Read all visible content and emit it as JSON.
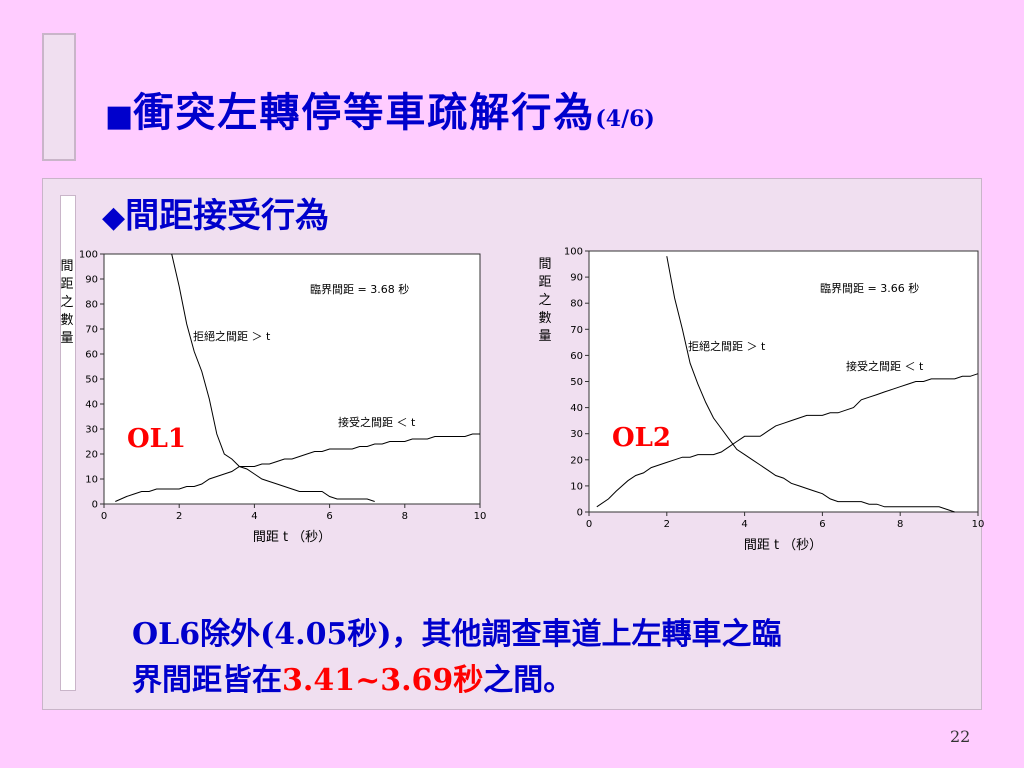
{
  "slide": {
    "bullet": "■",
    "title": "衝突左轉停等車疏解行為",
    "part": "(4/6)",
    "subtitle_bullet": "◆",
    "subtitle": "間距接受行為",
    "conclusion": {
      "line1": "OL6除外(4.05秒)，其他調查車道上左轉車之臨",
      "line2_prefix": "界間距皆在",
      "line2_highlight": "3.41~3.69秒",
      "line2_suffix": "之間。"
    },
    "page_number": "22",
    "colors": {
      "title": "#0000cc",
      "highlight": "#ff0000",
      "background": "#ffccff",
      "panel": "#f0dff0"
    }
  },
  "chart_data": [
    {
      "type": "line",
      "label": "OL1",
      "xlabel": "間距  t （秒）",
      "ylabel": "間距之數量",
      "xlim": [
        0,
        10
      ],
      "ylim": [
        0,
        100
      ],
      "xticks": [
        0,
        2,
        4,
        6,
        8,
        10
      ],
      "yticks": [
        0,
        10,
        20,
        30,
        40,
        50,
        60,
        70,
        80,
        90,
        100
      ],
      "critical_gap_text": "臨界間距  = 3.68  秒",
      "grid": false,
      "series": [
        {
          "name": "拒絕之間距 ＞ t",
          "x": [
            1.8,
            2.0,
            2.2,
            2.4,
            2.6,
            2.8,
            3.0,
            3.2,
            3.4,
            3.6,
            3.8,
            4.0,
            4.2,
            4.4,
            4.6,
            4.8,
            5.0,
            5.2,
            5.4,
            5.6,
            5.8,
            6.0,
            6.2,
            6.4,
            6.6,
            6.8,
            7.0,
            7.2
          ],
          "values": [
            100,
            87,
            72,
            61,
            53,
            42,
            28,
            20,
            18,
            15,
            14,
            12,
            10,
            9,
            8,
            7,
            6,
            5,
            5,
            5,
            5,
            3,
            2,
            2,
            2,
            2,
            2,
            1
          ]
        },
        {
          "name": "接受之間距 ＜ t",
          "x": [
            0.3,
            0.6,
            0.8,
            1.0,
            1.2,
            1.4,
            1.6,
            1.8,
            2.0,
            2.2,
            2.4,
            2.6,
            2.8,
            3.0,
            3.2,
            3.4,
            3.6,
            3.8,
            4.0,
            4.2,
            4.4,
            4.6,
            4.8,
            5.0,
            5.2,
            5.4,
            5.6,
            5.8,
            6.0,
            6.2,
            6.4,
            6.6,
            6.8,
            7.0,
            7.2,
            7.4,
            7.6,
            7.8,
            8.0,
            8.2,
            8.4,
            8.6,
            8.8,
            9.0,
            9.2,
            9.4,
            9.6,
            9.8,
            10.0
          ],
          "values": [
            1,
            3,
            4,
            5,
            5,
            6,
            6,
            6,
            6,
            7,
            7,
            8,
            10,
            11,
            12,
            13,
            15,
            15,
            15,
            16,
            16,
            17,
            18,
            18,
            19,
            20,
            21,
            21,
            22,
            22,
            22,
            22,
            23,
            23,
            24,
            24,
            25,
            25,
            25,
            26,
            26,
            26,
            27,
            27,
            27,
            27,
            27,
            28,
            28
          ]
        }
      ]
    },
    {
      "type": "line",
      "label": "OL2",
      "xlabel": "間距  t （秒）",
      "ylabel": "間距之數量",
      "xlim": [
        0,
        10
      ],
      "ylim": [
        0,
        100
      ],
      "xticks": [
        0,
        2,
        4,
        6,
        8,
        10
      ],
      "yticks": [
        0,
        10,
        20,
        30,
        40,
        50,
        60,
        70,
        80,
        90,
        100
      ],
      "critical_gap_text": "臨界間距  = 3.66  秒",
      "grid": false,
      "series": [
        {
          "name": "拒絕之間距 ＞ t",
          "x": [
            2.0,
            2.2,
            2.4,
            2.6,
            2.8,
            3.0,
            3.2,
            3.4,
            3.6,
            3.8,
            4.0,
            4.2,
            4.4,
            4.6,
            4.8,
            5.0,
            5.2,
            5.4,
            5.6,
            5.8,
            6.0,
            6.2,
            6.4,
            6.6,
            6.8,
            7.0,
            7.2,
            7.4,
            7.6,
            7.8,
            8.0,
            8.2,
            8.4,
            8.6,
            8.8,
            9.0,
            9.2,
            9.4
          ],
          "values": [
            98,
            82,
            70,
            57,
            49,
            42,
            36,
            32,
            28,
            24,
            22,
            20,
            18,
            16,
            14,
            13,
            11,
            10,
            9,
            8,
            7,
            5,
            4,
            4,
            4,
            4,
            3,
            3,
            2,
            2,
            2,
            2,
            2,
            2,
            2,
            2,
            1,
            0
          ]
        },
        {
          "name": "接受之間距 ＜ t",
          "x": [
            0.2,
            0.5,
            0.7,
            1.0,
            1.2,
            1.4,
            1.6,
            1.8,
            2.0,
            2.2,
            2.4,
            2.6,
            2.8,
            3.0,
            3.2,
            3.4,
            3.6,
            3.8,
            4.0,
            4.2,
            4.4,
            4.6,
            4.8,
            5.0,
            5.2,
            5.4,
            5.6,
            5.8,
            6.0,
            6.2,
            6.4,
            6.6,
            6.8,
            7.0,
            7.2,
            7.4,
            7.6,
            7.8,
            8.0,
            8.2,
            8.4,
            8.6,
            8.8,
            9.0,
            9.2,
            9.4,
            9.6,
            9.8,
            10.0
          ],
          "values": [
            2,
            5,
            8,
            12,
            14,
            15,
            17,
            18,
            19,
            20,
            21,
            21,
            22,
            22,
            22,
            23,
            25,
            27,
            29,
            29,
            29,
            31,
            33,
            34,
            35,
            36,
            37,
            37,
            37,
            38,
            38,
            39,
            40,
            43,
            44,
            45,
            46,
            47,
            48,
            49,
            50,
            50,
            51,
            51,
            51,
            51,
            52,
            52,
            53
          ]
        }
      ]
    }
  ]
}
